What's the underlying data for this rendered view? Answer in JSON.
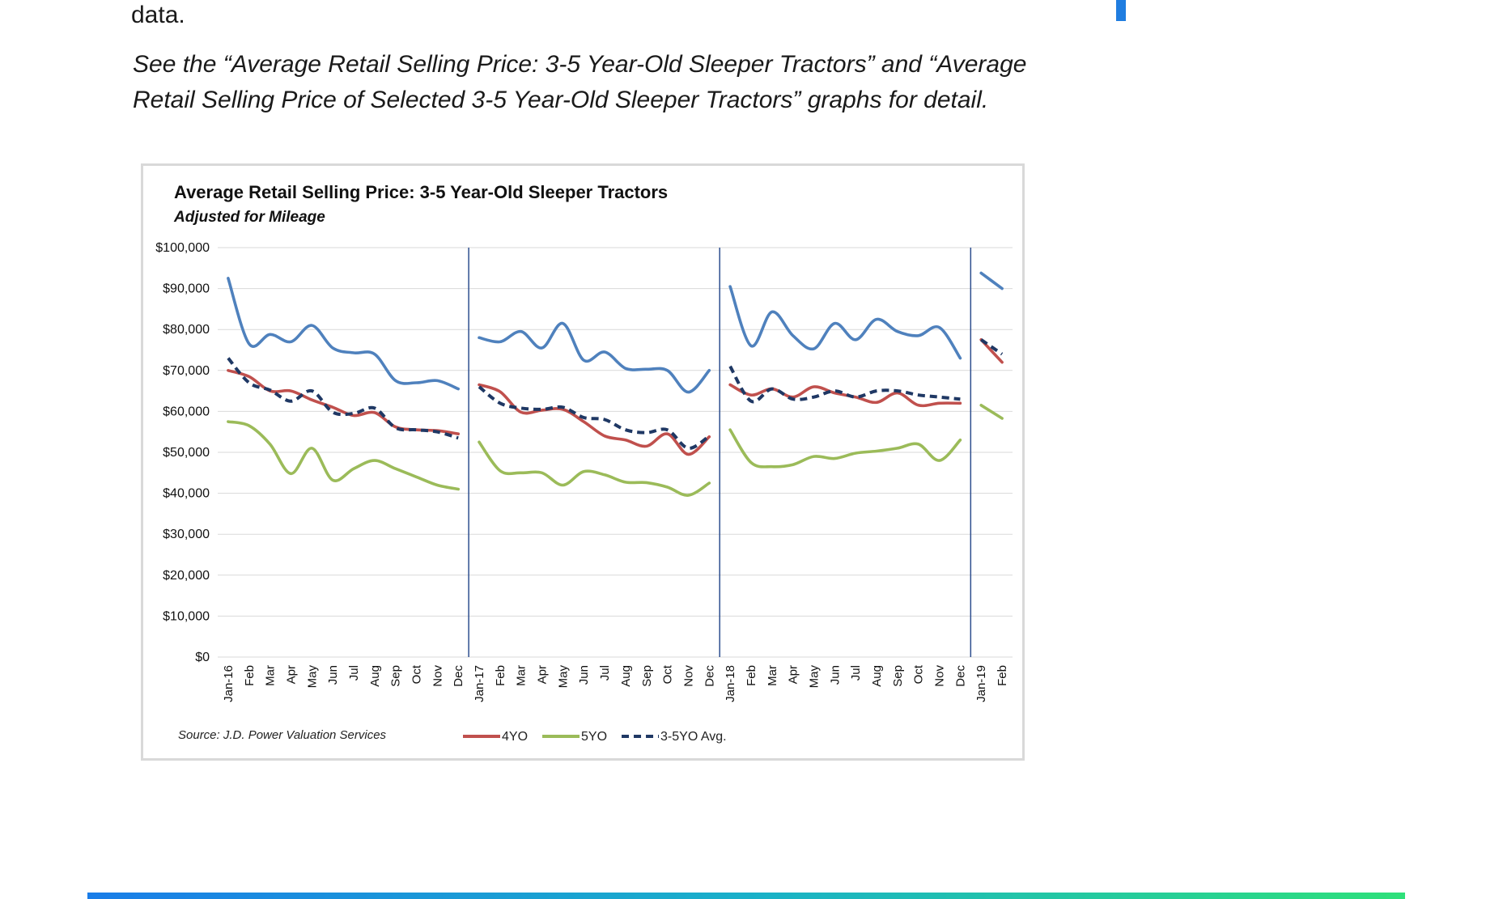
{
  "document": {
    "intro_tail": "data.",
    "caption": "See the “Average Retail Selling Price: 3-5 Year-Old Sleeper Tractors” and “Average Retail Selling Price of Selected 3-5 Year-Old Sleeper Tractors” graphs for detail."
  },
  "colors": {
    "series_3yo": "#4f81bd",
    "series_4yo": "#c0504d",
    "series_5yo": "#9bbb59",
    "series_avg": "#1f3864",
    "year_divider": "#2e4f8f",
    "grid": "#d9d9d9",
    "bottom_bar_start": "#1a7de8",
    "bottom_bar_end": "#2ee07a"
  },
  "chart_data": {
    "type": "line",
    "title": "Average Retail Selling Price: 3-5 Year-Old Sleeper Tractors",
    "subtitle": "Adjusted for Mileage",
    "source": "Source: J.D. Power Valuation Services",
    "ylim": [
      0,
      100000
    ],
    "yticks": [
      0,
      10000,
      20000,
      30000,
      40000,
      50000,
      60000,
      70000,
      80000,
      90000,
      100000
    ],
    "ytick_labels": [
      "$0",
      "$10,000",
      "$20,000",
      "$30,000",
      "$40,000",
      "$50,000",
      "$60,000",
      "$70,000",
      "$80,000",
      "$90,000",
      "$100,000"
    ],
    "categories": [
      "Jan-16",
      "Feb",
      "Mar",
      "Apr",
      "May",
      "Jun",
      "Jul",
      "Aug",
      "Sep",
      "Oct",
      "Nov",
      "Dec",
      "Jan-17",
      "Feb",
      "Mar",
      "Apr",
      "May",
      "Jun",
      "Jul",
      "Aug",
      "Sep",
      "Oct",
      "Nov",
      "Dec",
      "Jan-18",
      "Feb",
      "Mar",
      "Apr",
      "May",
      "Jun",
      "Jul",
      "Aug",
      "Sep",
      "Oct",
      "Nov",
      "Dec",
      "Jan-19",
      "Feb"
    ],
    "year_segments": [
      [
        0,
        11
      ],
      [
        12,
        23
      ],
      [
        24,
        35
      ],
      [
        36,
        37
      ]
    ],
    "series": [
      {
        "key": "3yo",
        "color": "#4f81bd",
        "style": "solid",
        "values": [
          92500,
          76500,
          78800,
          77000,
          81000,
          75500,
          74300,
          74000,
          67500,
          67000,
          67500,
          65500,
          78000,
          77000,
          79500,
          75500,
          81500,
          72500,
          74500,
          70500,
          70300,
          70000,
          64700,
          70000,
          90500,
          76000,
          84300,
          78500,
          75300,
          81500,
          77500,
          82500,
          79500,
          78500,
          80500,
          73000,
          93800,
          90000
        ]
      },
      {
        "key": "4yo",
        "name": "4YO",
        "color": "#c0504d",
        "style": "solid",
        "values": [
          70000,
          68500,
          65000,
          65000,
          62800,
          61000,
          59000,
          59700,
          56200,
          55500,
          55300,
          54500,
          66500,
          64800,
          59800,
          60300,
          60500,
          57500,
          54000,
          53000,
          51500,
          54500,
          49500,
          53800,
          66500,
          64000,
          65500,
          63500,
          66000,
          64500,
          63500,
          62200,
          64500,
          61500,
          62000,
          62000,
          77500,
          72000
        ]
      },
      {
        "key": "5yo",
        "name": "5YO",
        "color": "#9bbb59",
        "style": "solid",
        "values": [
          57500,
          56500,
          52000,
          44800,
          51000,
          43200,
          46000,
          48000,
          46000,
          44000,
          42000,
          41000,
          52500,
          45500,
          45000,
          45000,
          42000,
          45300,
          44500,
          42700,
          42600,
          41500,
          39500,
          42500,
          55500,
          47500,
          46500,
          47000,
          49000,
          48500,
          49800,
          50300,
          51000,
          52000,
          48000,
          53000,
          61500,
          58300
        ]
      },
      {
        "key": "avg",
        "name": "3-5YO Avg.",
        "color": "#1f3864",
        "style": "dashed",
        "values": [
          73000,
          67000,
          65200,
          62500,
          65000,
          59800,
          59500,
          60800,
          56000,
          55500,
          55000,
          53500,
          66000,
          62000,
          60800,
          60500,
          61000,
          58500,
          58000,
          55500,
          54800,
          55500,
          51000,
          54000,
          71000,
          62500,
          65500,
          63000,
          63500,
          65000,
          63500,
          65000,
          65000,
          64000,
          63500,
          63000,
          77500,
          74000
        ]
      }
    ],
    "legend_position": "bottom"
  }
}
